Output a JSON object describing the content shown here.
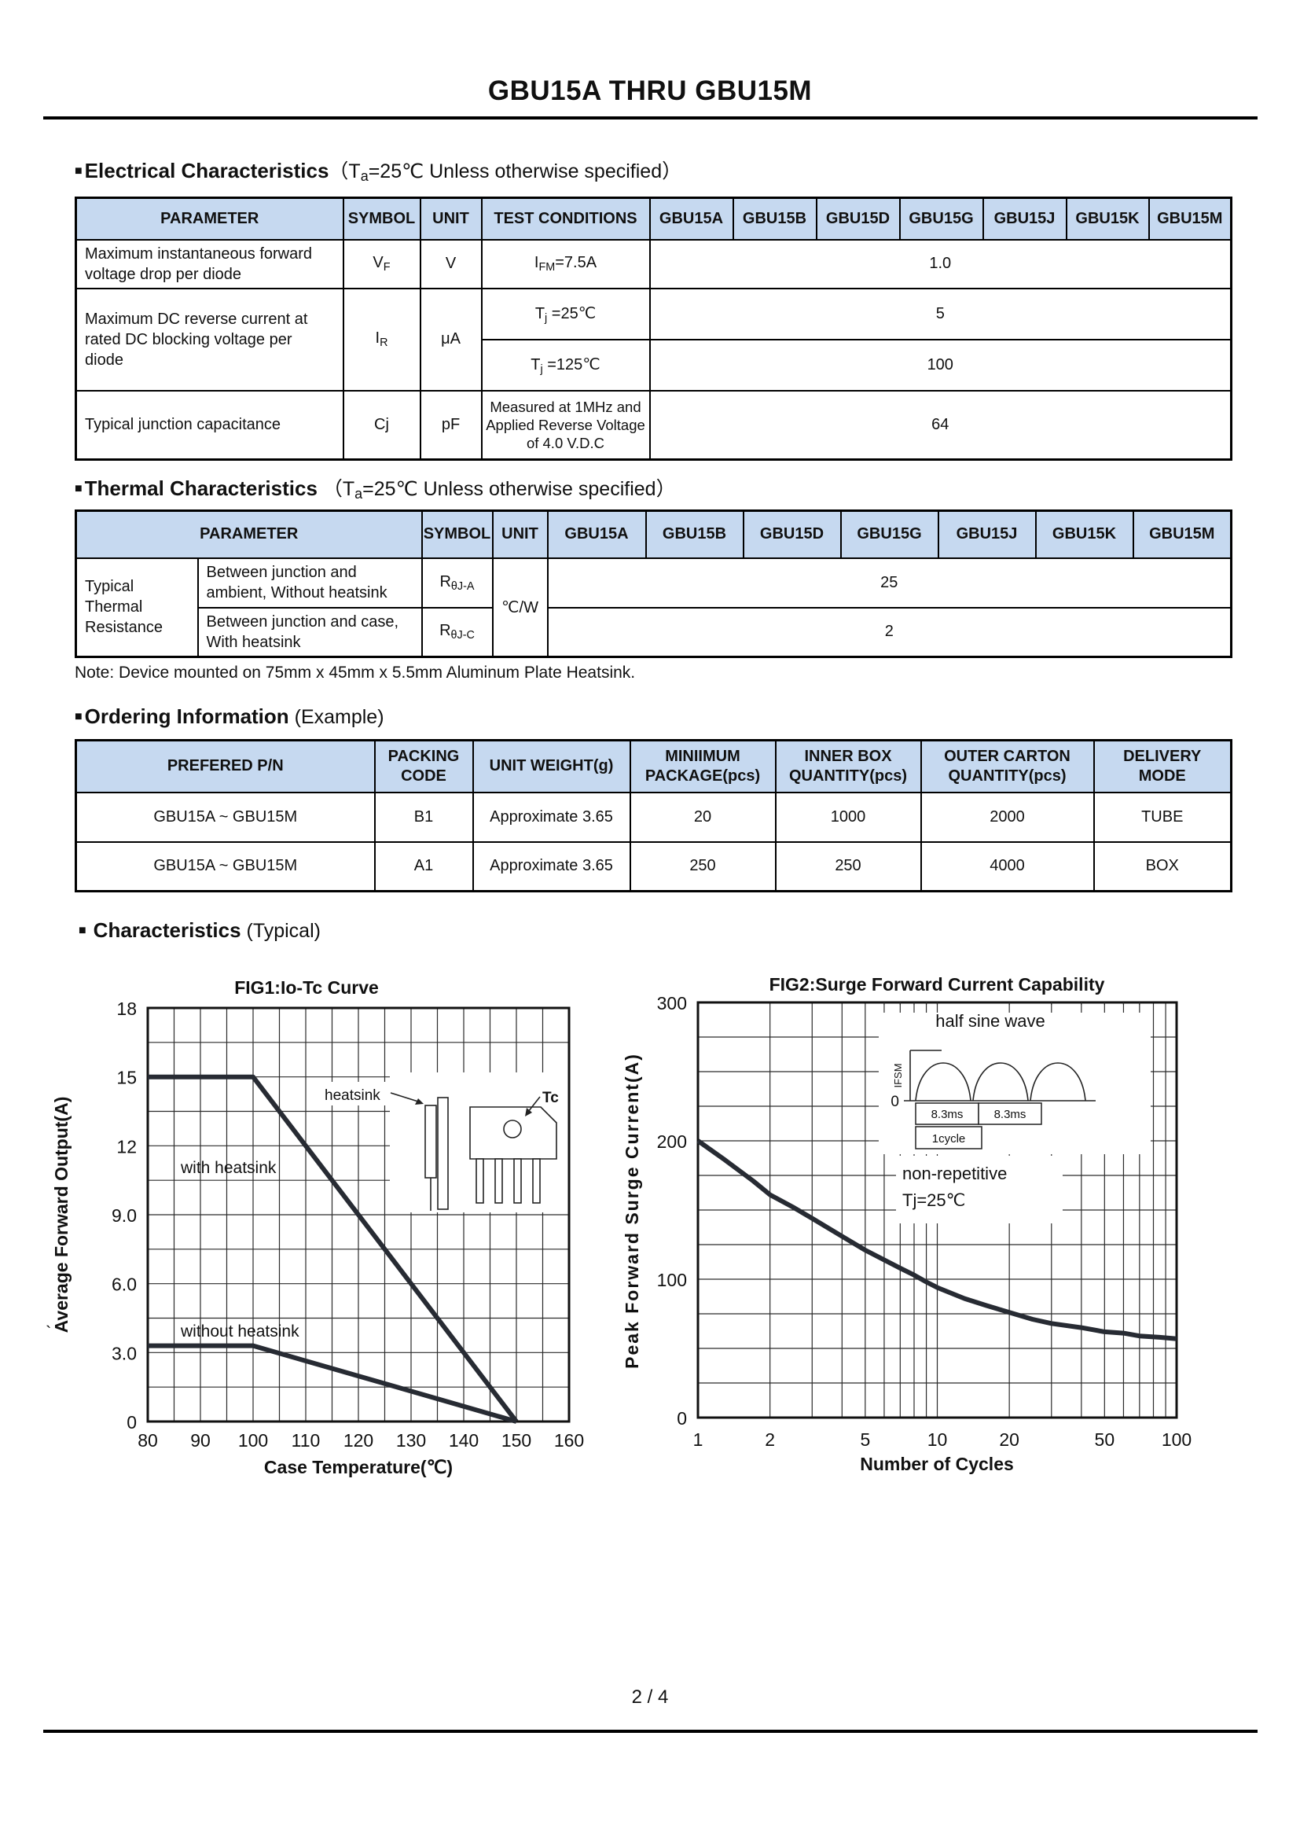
{
  "page": {
    "title": "GBU15A THRU GBU15M",
    "footer": "2 / 4",
    "stray_mark": "`"
  },
  "electrical": {
    "bullet": "■",
    "heading": "Electrical Characteristics",
    "cond_pre": "（T",
    "cond_sub": "a",
    "cond_post": "=25℃ Unless otherwise specified）",
    "headers": [
      "PARAMETER",
      "SYMBOL",
      "UNIT",
      "TEST CONDITIONS",
      "GBU15A",
      "GBU15B",
      "GBU15D",
      "GBU15G",
      "GBU15J",
      "GBU15K",
      "GBU15M"
    ],
    "vf": {
      "param": "Maximum instantaneous forward voltage drop per diode",
      "sym": "V",
      "sym_sub": "F",
      "unit": "V",
      "cond": "I",
      "cond_sub": "FM",
      "cond_tail": "=7.5A",
      "value": "1.0"
    },
    "ir": {
      "param": "Maximum DC reverse current at rated DC blocking voltage per diode",
      "sym": "I",
      "sym_sub": "R",
      "unit": "μA",
      "cond1": "T",
      "cond1_sub": "j",
      "cond1_tail": " =25℃",
      "value1": "5",
      "cond2": "T",
      "cond2_sub": "j",
      "cond2_tail": " =125℃",
      "value2": "100"
    },
    "cj": {
      "param": "Typical junction capacitance",
      "sym": "Cj",
      "unit": "pF",
      "cond": "Measured at 1MHz and Applied Reverse Voltage of 4.0 V.D.C",
      "value": "64"
    }
  },
  "thermal": {
    "bullet": "■",
    "heading": "Thermal Characteristics",
    "cond_pre": "（T",
    "cond_sub": "a",
    "cond_post": "=25℃ Unless otherwise specified）",
    "headers": [
      "PARAMETER",
      "SYMBOL",
      "UNIT",
      "GBU15A",
      "GBU15B",
      "GBU15D",
      "GBU15G",
      "GBU15J",
      "GBU15K",
      "GBU15M"
    ],
    "group": "Typical Thermal Resistance",
    "unit": "℃/W",
    "rows": [
      {
        "desc": "Between junction and ambient, Without heatsink",
        "sym": "R",
        "sym_sub": "θJ-A",
        "value": "25"
      },
      {
        "desc": "Between junction and case, With heatsink",
        "sym": "R",
        "sym_sub": "θJ-C",
        "value": "2"
      }
    ],
    "note": "Note: Device mounted on 75mm x 45mm x 5.5mm Aluminum Plate Heatsink."
  },
  "ordering": {
    "bullet": "■",
    "heading": "Ordering Information",
    "suffix": " (Example)",
    "headers": [
      "PREFERED P/N",
      "PACKING\nCODE",
      "UNIT WEIGHT(g)",
      "MINIIMUM\nPACKAGE(pcs)",
      "INNER BOX\nQUANTITY(pcs)",
      "OUTER CARTON\nQUANTITY(pcs)",
      "DELIVERY\nMODE"
    ],
    "rows": [
      [
        "GBU15A ~ GBU15M",
        "B1",
        "Approximate 3.65",
        "20",
        "1000",
        "2000",
        "TUBE"
      ],
      [
        "GBU15A ~ GBU15M",
        "A1",
        "Approximate 3.65",
        "250",
        "250",
        "4000",
        "BOX"
      ]
    ]
  },
  "characteristics": {
    "bullet": "■",
    "heading": "Characteristics",
    "suffix": " (Typical)"
  },
  "chart_data": [
    {
      "type": "line",
      "title": "FIG1:Io-Tc Curve",
      "xlabel": "Case Temperature(℃)",
      "ylabel": "Average Forward Output(A)",
      "xlim": [
        80,
        160
      ],
      "ylim": [
        0,
        18
      ],
      "x_grid_step": 5,
      "y_grid_step": 1.5,
      "grid": true,
      "legend_position": "none",
      "x_tick_values": [
        80,
        90,
        100,
        110,
        120,
        130,
        140,
        150,
        160
      ],
      "x_tick_labels": [
        "80",
        "90",
        "100",
        "110",
        "120",
        "130",
        "140",
        "150",
        "160"
      ],
      "y_tick_values": [
        18,
        15,
        12,
        9,
        6,
        3,
        0
      ],
      "y_tick_labels": [
        "18",
        "15",
        "12",
        "9.0",
        "6.0",
        "3.0",
        "0"
      ],
      "series": [
        {
          "name": "with heatsink",
          "points": [
            [
              80,
              15
            ],
            [
              100,
              15
            ],
            [
              150,
              0
            ]
          ]
        },
        {
          "name": "without heatsink",
          "points": [
            [
              80,
              3.3
            ],
            [
              100,
              3.3
            ],
            [
              150,
              0
            ]
          ]
        }
      ],
      "inset": {
        "heatsink_label": "heatsink",
        "tc_label": "Tc"
      }
    },
    {
      "type": "line",
      "title": "FIG2:Surge Forward Current Capability",
      "xlabel": "Number of Cycles",
      "ylabel": "Peak Forward Surge Current(A)",
      "x_scale": "log",
      "xlim": [
        1,
        100
      ],
      "ylim": [
        0,
        300
      ],
      "y_grid_step": 25,
      "grid": true,
      "legend_position": "none",
      "x_tick_values": [
        1,
        2,
        5,
        10,
        20,
        50,
        100
      ],
      "x_tick_labels": [
        "1",
        "2",
        "5",
        "10",
        "20",
        "50",
        "100"
      ],
      "y_tick_values": [
        300,
        200,
        100,
        0
      ],
      "y_tick_labels": [
        "300",
        "200",
        "100",
        "0"
      ],
      "series": [
        {
          "name": "non-repetitive Tj=25℃",
          "points": [
            [
              1,
              200
            ],
            [
              1.3,
              186
            ],
            [
              1.7,
              171
            ],
            [
              2,
              161
            ],
            [
              2.5,
              152
            ],
            [
              3,
              144
            ],
            [
              4,
              131
            ],
            [
              5,
              121
            ],
            [
              6,
              114
            ],
            [
              7,
              108
            ],
            [
              8,
              103
            ],
            [
              9,
              98
            ],
            [
              10,
              94
            ],
            [
              13,
              86
            ],
            [
              16,
              81
            ],
            [
              20,
              76
            ],
            [
              25,
              71
            ],
            [
              30,
              68
            ],
            [
              40,
              65
            ],
            [
              50,
              62
            ],
            [
              60,
              61
            ],
            [
              70,
              59
            ],
            [
              85,
              58
            ],
            [
              100,
              57
            ]
          ]
        }
      ],
      "inset": {
        "title": "half sine wave",
        "zero": "0",
        "ifsm": "IFSM",
        "dim1": "8.3ms",
        "dim2": "8.3ms",
        "cycle": "1cycle",
        "note_line1": "non-repetitive",
        "note_line2": "Tj=25℃"
      }
    }
  ]
}
